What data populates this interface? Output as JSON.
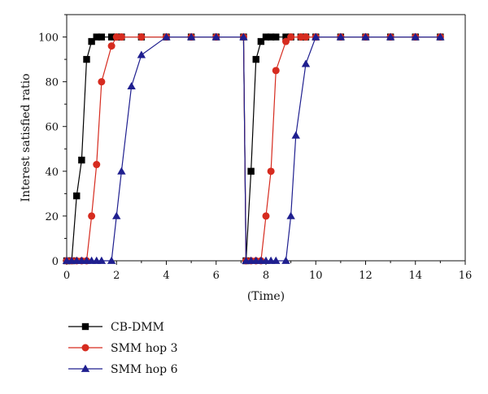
{
  "chart_data": {
    "type": "line",
    "xlabel": "(Time)",
    "ylabel": "Interest satisfied ratio",
    "xlim": [
      0,
      16
    ],
    "ylim": [
      0,
      110
    ],
    "xticks": [
      0,
      2,
      4,
      6,
      8,
      10,
      12,
      14,
      16
    ],
    "yticks": [
      0,
      20,
      40,
      60,
      80,
      100
    ],
    "grid": false,
    "legend_position": "below",
    "series": [
      {
        "name": "CB-DMM",
        "color": "#000000",
        "marker": "square",
        "points": [
          [
            0,
            0
          ],
          [
            0.2,
            0
          ],
          [
            0.4,
            29
          ],
          [
            0.6,
            45
          ],
          [
            0.8,
            90
          ],
          [
            1.0,
            98
          ],
          [
            1.2,
            100
          ],
          [
            1.4,
            100
          ],
          [
            1.8,
            100
          ],
          [
            2.0,
            100
          ],
          [
            2.2,
            100
          ],
          [
            3,
            100
          ],
          [
            4,
            100
          ],
          [
            5,
            100
          ],
          [
            6,
            100
          ],
          [
            7.1,
            100
          ],
          [
            7.2,
            0
          ],
          [
            7.4,
            40
          ],
          [
            7.6,
            90
          ],
          [
            7.8,
            98
          ],
          [
            8.0,
            100
          ],
          [
            8.2,
            100
          ],
          [
            8.4,
            100
          ],
          [
            8.8,
            100
          ],
          [
            9.0,
            100
          ],
          [
            9.4,
            100
          ],
          [
            9.6,
            100
          ],
          [
            10,
            100
          ],
          [
            11,
            100
          ],
          [
            12,
            100
          ],
          [
            13,
            100
          ],
          [
            14,
            100
          ],
          [
            15,
            100
          ]
        ]
      },
      {
        "name": "SMM hop 3",
        "color": "#d62b1f",
        "marker": "circle",
        "points": [
          [
            0,
            0
          ],
          [
            0.2,
            0
          ],
          [
            0.4,
            0
          ],
          [
            0.6,
            0
          ],
          [
            0.8,
            0
          ],
          [
            1.0,
            20
          ],
          [
            1.2,
            43
          ],
          [
            1.4,
            80
          ],
          [
            1.8,
            96
          ],
          [
            2.0,
            100
          ],
          [
            2.2,
            100
          ],
          [
            3,
            100
          ],
          [
            4,
            100
          ],
          [
            5,
            100
          ],
          [
            6,
            100
          ],
          [
            7.1,
            100
          ],
          [
            7.2,
            0
          ],
          [
            7.4,
            0
          ],
          [
            7.6,
            0
          ],
          [
            7.8,
            0
          ],
          [
            8.0,
            20
          ],
          [
            8.2,
            40
          ],
          [
            8.4,
            85
          ],
          [
            8.8,
            98
          ],
          [
            9.0,
            100
          ],
          [
            9.4,
            100
          ],
          [
            9.6,
            100
          ],
          [
            10,
            100
          ],
          [
            11,
            100
          ],
          [
            12,
            100
          ],
          [
            13,
            100
          ],
          [
            14,
            100
          ],
          [
            15,
            100
          ]
        ]
      },
      {
        "name": "SMM hop 6",
        "color": "#1f1f8f",
        "marker": "triangle",
        "points": [
          [
            0,
            0
          ],
          [
            0.2,
            0
          ],
          [
            0.4,
            0
          ],
          [
            0.6,
            0
          ],
          [
            0.8,
            0
          ],
          [
            1.0,
            0
          ],
          [
            1.2,
            0
          ],
          [
            1.4,
            0
          ],
          [
            1.8,
            0
          ],
          [
            2.0,
            20
          ],
          [
            2.2,
            40
          ],
          [
            2.6,
            78
          ],
          [
            3,
            92
          ],
          [
            4,
            100
          ],
          [
            5,
            100
          ],
          [
            6,
            100
          ],
          [
            7.1,
            100
          ],
          [
            7.2,
            0
          ],
          [
            7.4,
            0
          ],
          [
            7.6,
            0
          ],
          [
            7.8,
            0
          ],
          [
            8.0,
            0
          ],
          [
            8.2,
            0
          ],
          [
            8.4,
            0
          ],
          [
            8.8,
            0
          ],
          [
            9.0,
            20
          ],
          [
            9.2,
            56
          ],
          [
            9.6,
            88
          ],
          [
            10,
            100
          ],
          [
            11,
            100
          ],
          [
            12,
            100
          ],
          [
            13,
            100
          ],
          [
            14,
            100
          ],
          [
            15,
            100
          ]
        ]
      }
    ]
  }
}
